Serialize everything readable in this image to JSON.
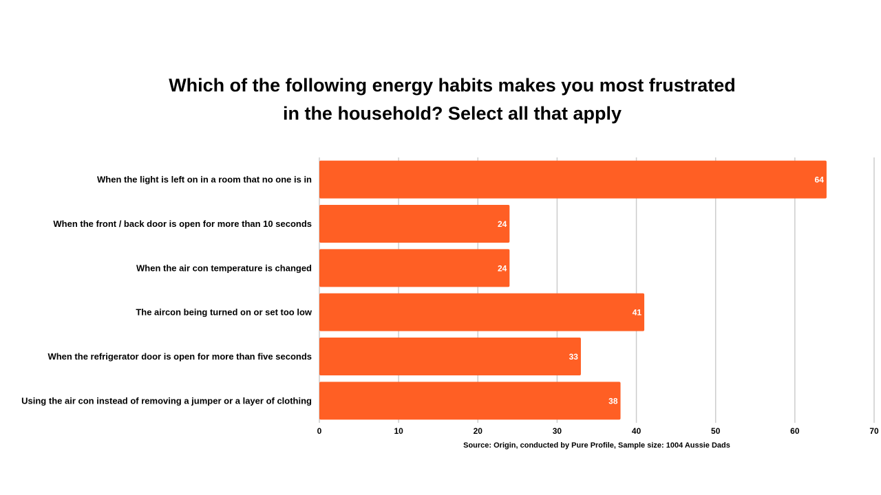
{
  "chart_data": {
    "type": "bar",
    "orientation": "horizontal",
    "title": "Which of the following energy habits makes you most frustrated in the household? Select all that apply",
    "categories": [
      "When the light is left on in a room that no one is in",
      "When the front / back door is open for more than 10 seconds",
      "When the air con temperature is changed",
      "The aircon being turned on or set too low",
      "When the refrigerator door is open for more than five seconds",
      "Using the air con instead of removing a jumper or a layer of clothing"
    ],
    "values": [
      64,
      24,
      24,
      41,
      33,
      38
    ],
    "data_labels": [
      "64",
      "24",
      "24",
      "41",
      "33",
      "38"
    ],
    "xlim": [
      0,
      70
    ],
    "xticks": [
      0,
      10,
      20,
      30,
      40,
      50,
      60,
      70
    ],
    "xtick_labels": [
      "0",
      "10",
      "20",
      "30",
      "40",
      "50",
      "60",
      "70"
    ],
    "xlabel": "",
    "ylabel": "",
    "grid": "vertical",
    "legend": "none",
    "bar_color": "#FF5F24",
    "grid_color": "#CCCCCC",
    "source": "Source: Origin, conducted by Pure Profile, Sample size: 1004 Aussie Dads"
  }
}
